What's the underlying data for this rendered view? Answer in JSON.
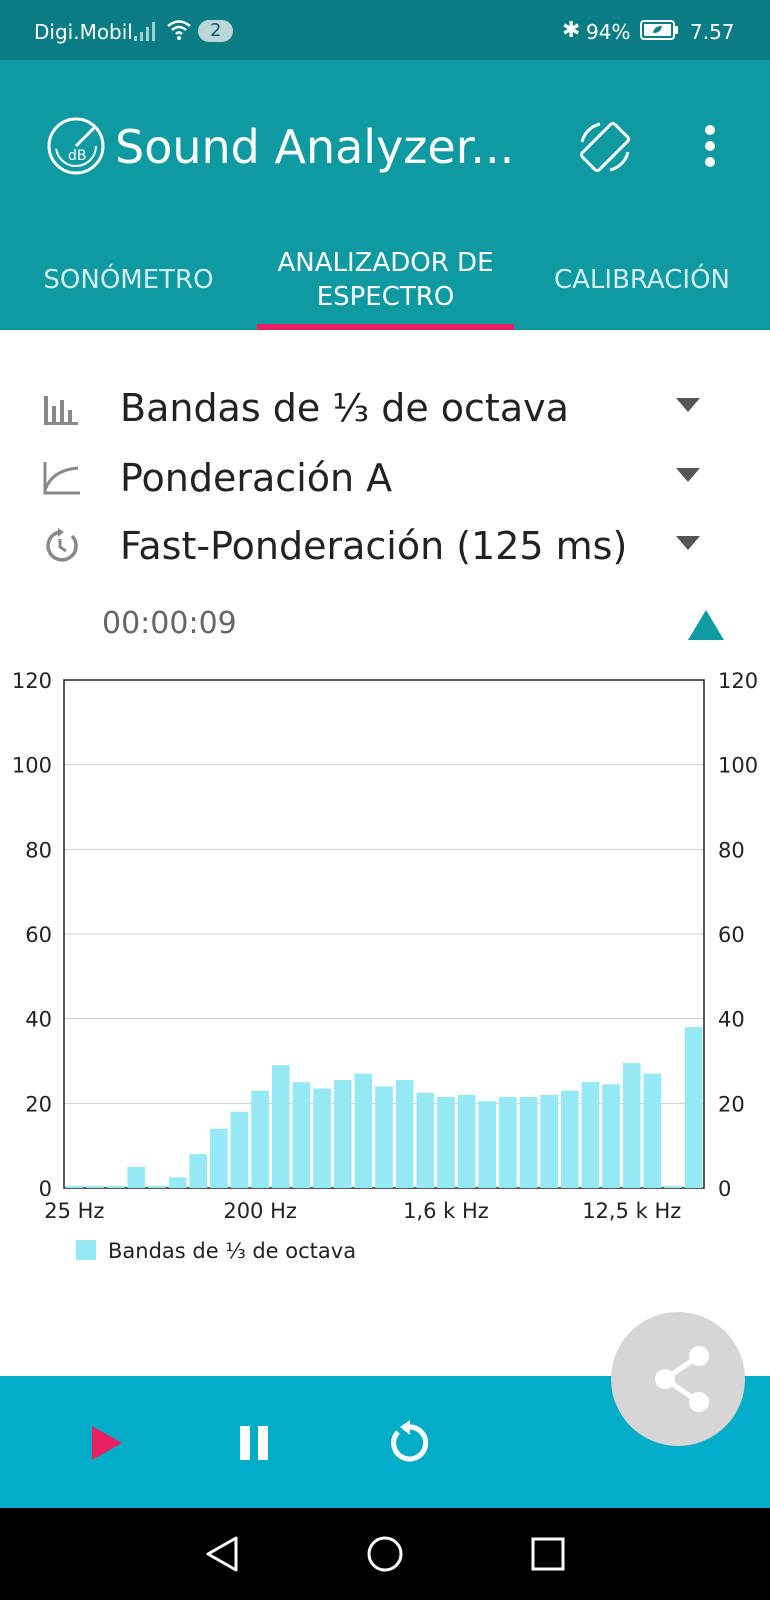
{
  "status_bar": {
    "carrier": "Digi.Mobil",
    "notification_count": "2",
    "battery_pct": "94%",
    "time": "7.57"
  },
  "app_bar": {
    "title": "Sound Analyzer..."
  },
  "tabs": [
    {
      "label": "SONÓMETRO"
    },
    {
      "label": "ANALIZADOR DE ESPECTRO",
      "active": true
    },
    {
      "label": "CALIBRACIÓN"
    }
  ],
  "options": {
    "band": "Bandas de ⅓ de octava",
    "weighting": "Ponderación A",
    "time_weighting": "Fast-Ponderación (125 ms)"
  },
  "timer": "00:00:09",
  "colors": {
    "primary": "#0f9aa2",
    "status": "#0a7d84",
    "accent": "#e91e63",
    "bar": "#94e9f5",
    "bottom_bar": "#03acc7"
  },
  "chart_data": {
    "type": "bar",
    "series_name": "Bandas de ⅓ de octava",
    "ylim": [
      0,
      120
    ],
    "yticks": [
      "0",
      "20",
      "40",
      "60",
      "80",
      "100",
      "120"
    ],
    "x_labels": [
      "25 Hz",
      "200 Hz",
      "1,6 k Hz",
      "12,5 k Hz"
    ],
    "values": [
      0.5,
      0.5,
      0.5,
      5,
      0.5,
      2.5,
      8,
      14,
      18,
      23,
      29,
      25,
      23.5,
      25.5,
      27,
      24,
      25.5,
      22.5,
      21.5,
      22,
      20.5,
      21.5,
      21.5,
      22,
      23,
      25,
      24.5,
      29.5,
      27,
      0.5,
      38
    ],
    "grid": true,
    "legend": "bottom-left"
  },
  "icons": {
    "logo": "db-meter-icon",
    "rotate": "screen-rotate-icon",
    "more": "more-vert-icon",
    "share": "share-icon",
    "play": "play-icon",
    "pause": "pause-icon",
    "reset": "reset-icon"
  }
}
